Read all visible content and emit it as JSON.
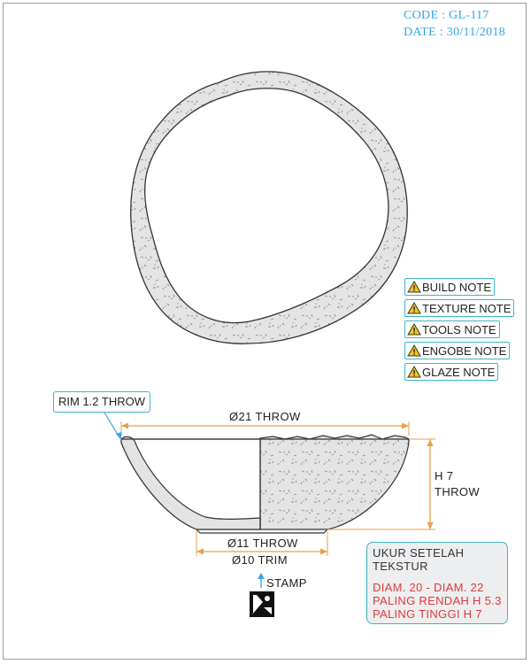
{
  "header": {
    "code": "CODE : GL-117",
    "date": "DATE : 30/11/2018"
  },
  "notes": [
    {
      "label": "BUILD NOTE",
      "icon": "warning-icon"
    },
    {
      "label": "TEXTURE NOTE",
      "icon": "warning-icon"
    },
    {
      "label": "TOOLS NOTE",
      "icon": "warning-icon"
    },
    {
      "label": "ENGOBE NOTE",
      "icon": "warning-icon"
    },
    {
      "label": "GLAZE NOTE",
      "icon": "warning-icon"
    }
  ],
  "dimensions": {
    "rim": "RIM 1.2 THROW",
    "diameter_top": "Ø21 THROW",
    "height_line1": "H 7",
    "height_line2": "THROW",
    "foot_throw": "Ø11 THROW",
    "foot_trim": "Ø10 TRIM",
    "stamp": "STAMP"
  },
  "measurement_box": {
    "title_line1": "UKUR SETELAH",
    "title_line2": "TEKSTUR",
    "line1": "DIAM. 20 - DIAM. 22",
    "line2": "PALING RENDAH H 5.3",
    "line3": "PALING TINGGI H 7"
  },
  "colors": {
    "accent": "#35a7e0",
    "note_border": "#3cb6c8",
    "dimension_line": "#e8a04a",
    "warning_red": "#e0393c",
    "warning_yellow": "#f5c518",
    "clay_fill": "#e3e3e3"
  }
}
